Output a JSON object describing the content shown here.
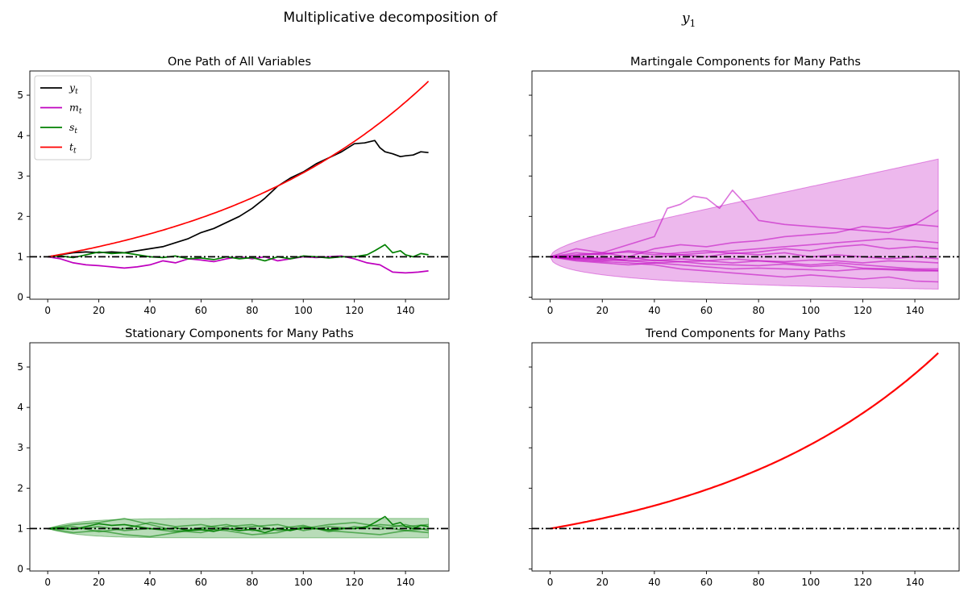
{
  "suptitle": {
    "text": "Multiplicative decomposition of",
    "var": "y",
    "sub": "1"
  },
  "colors": {
    "y": "#000000",
    "m": "#bf00bf",
    "s": "#008000",
    "t": "#ff0000",
    "ref": "#000000"
  },
  "chart_data": [
    {
      "type": "line",
      "title": "One Path of All Variables",
      "xlim": [
        -7,
        157
      ],
      "ylim": [
        -0.05,
        5.6
      ],
      "xticks": [
        0,
        20,
        40,
        60,
        80,
        100,
        120,
        140
      ],
      "yticks": [
        0,
        1,
        2,
        3,
        4,
        5
      ],
      "show_yticklabels": true,
      "legend": {
        "placement": "top-left",
        "entries": [
          {
            "var": "y",
            "sub": "t"
          },
          {
            "var": "m",
            "sub": "t"
          },
          {
            "var": "s",
            "sub": "t"
          },
          {
            "var": "t",
            "sub": "t"
          }
        ]
      },
      "hline": 1,
      "series": [
        {
          "name": "y_t",
          "color_key": "y",
          "x": [
            0,
            5,
            10,
            15,
            20,
            25,
            30,
            35,
            40,
            45,
            50,
            55,
            60,
            65,
            70,
            75,
            80,
            85,
            90,
            95,
            100,
            105,
            110,
            115,
            120,
            124,
            128,
            130,
            132,
            135,
            138,
            140,
            143,
            146,
            149
          ],
          "y": [
            1.0,
            1.05,
            1.1,
            1.12,
            1.1,
            1.12,
            1.1,
            1.15,
            1.2,
            1.25,
            1.35,
            1.45,
            1.6,
            1.7,
            1.85,
            2.0,
            2.2,
            2.45,
            2.75,
            2.95,
            3.1,
            3.3,
            3.45,
            3.6,
            3.8,
            3.82,
            3.88,
            3.7,
            3.6,
            3.55,
            3.48,
            3.5,
            3.52,
            3.6,
            3.58
          ]
        },
        {
          "name": "m_t",
          "color_key": "m",
          "x": [
            0,
            5,
            10,
            15,
            20,
            25,
            30,
            35,
            40,
            45,
            50,
            55,
            60,
            65,
            70,
            75,
            80,
            85,
            90,
            95,
            100,
            105,
            110,
            115,
            120,
            125,
            130,
            135,
            140,
            145,
            149
          ],
          "y": [
            1.0,
            0.95,
            0.85,
            0.8,
            0.78,
            0.75,
            0.72,
            0.75,
            0.8,
            0.9,
            0.85,
            0.95,
            0.92,
            0.88,
            0.95,
            1.0,
            0.95,
            1.0,
            0.9,
            0.95,
            1.0,
            0.98,
            1.0,
            1.02,
            0.95,
            0.85,
            0.8,
            0.62,
            0.6,
            0.62,
            0.65
          ]
        },
        {
          "name": "s_t",
          "color_key": "s",
          "x": [
            0,
            5,
            10,
            15,
            20,
            25,
            30,
            35,
            40,
            45,
            50,
            55,
            60,
            65,
            70,
            75,
            80,
            85,
            90,
            95,
            100,
            105,
            110,
            115,
            120,
            125,
            128,
            132,
            135,
            138,
            140,
            143,
            146,
            149
          ],
          "y": [
            1.0,
            1.02,
            0.98,
            1.05,
            1.12,
            1.08,
            1.1,
            1.05,
            1.0,
            0.98,
            1.02,
            0.95,
            0.97,
            0.93,
            1.0,
            0.95,
            0.98,
            0.9,
            1.0,
            0.95,
            1.02,
            1.0,
            0.97,
            1.0,
            1.0,
            1.05,
            1.15,
            1.3,
            1.1,
            1.15,
            1.05,
            1.0,
            1.08,
            1.05
          ]
        },
        {
          "name": "t_t",
          "color_key": "t",
          "growth": 0.01125,
          "x_end": 149
        }
      ]
    },
    {
      "type": "line",
      "title": "Martingale Components for Many Paths",
      "xlim": [
        -7,
        157
      ],
      "ylim": [
        -0.05,
        5.6
      ],
      "xticks": [
        0,
        20,
        40,
        60,
        80,
        100,
        120,
        140
      ],
      "yticks": [
        0,
        1,
        2,
        3,
        4,
        5
      ],
      "show_yticklabels": false,
      "hline": 1,
      "band": {
        "color_key": "m",
        "x_end": 149,
        "upper_end": 3.42,
        "lower_end": 0.2,
        "shape": "sqrt"
      },
      "series": [
        {
          "color_key": "m",
          "x": [
            0,
            10,
            20,
            30,
            40,
            45,
            50,
            55,
            60,
            65,
            70,
            75,
            80,
            90,
            100,
            110,
            120,
            130,
            140,
            149
          ],
          "y": [
            1,
            1.2,
            1.1,
            1.3,
            1.5,
            2.2,
            2.3,
            2.5,
            2.45,
            2.2,
            2.65,
            2.3,
            1.9,
            1.8,
            1.75,
            1.7,
            1.65,
            1.6,
            1.8,
            2.15
          ]
        },
        {
          "color_key": "m",
          "x": [
            0,
            10,
            20,
            30,
            40,
            50,
            60,
            70,
            80,
            90,
            100,
            110,
            120,
            130,
            140,
            149
          ],
          "y": [
            1,
            1.05,
            1.1,
            1.0,
            1.2,
            1.3,
            1.25,
            1.35,
            1.4,
            1.5,
            1.55,
            1.6,
            1.75,
            1.7,
            1.8,
            1.75
          ]
        },
        {
          "color_key": "m",
          "x": [
            0,
            10,
            20,
            30,
            40,
            50,
            60,
            70,
            80,
            90,
            100,
            110,
            120,
            130,
            140,
            149
          ],
          "y": [
            1,
            0.95,
            0.9,
            0.95,
            1.0,
            1.05,
            1.1,
            1.15,
            1.2,
            1.25,
            1.3,
            1.35,
            1.4,
            1.45,
            1.4,
            1.35
          ]
        },
        {
          "color_key": "m",
          "x": [
            0,
            10,
            20,
            30,
            40,
            50,
            60,
            70,
            80,
            90,
            100,
            110,
            120,
            130,
            140,
            149
          ],
          "y": [
            1,
            0.9,
            0.85,
            0.8,
            0.85,
            0.8,
            0.75,
            0.7,
            0.72,
            0.7,
            0.68,
            0.65,
            0.7,
            0.68,
            0.65,
            0.65
          ]
        },
        {
          "color_key": "m",
          "x": [
            0,
            10,
            20,
            30,
            40,
            50,
            60,
            70,
            80,
            90,
            100,
            110,
            120,
            130,
            140,
            149
          ],
          "y": [
            1,
            1.0,
            0.95,
            1.0,
            0.9,
            0.95,
            0.9,
            0.85,
            0.9,
            0.85,
            0.8,
            0.85,
            0.8,
            0.75,
            0.7,
            0.7
          ]
        },
        {
          "color_key": "m",
          "x": [
            0,
            10,
            20,
            30,
            40,
            50,
            60,
            70,
            80,
            90,
            100,
            110,
            120,
            130,
            140,
            149
          ],
          "y": [
            1,
            0.92,
            0.88,
            0.85,
            0.8,
            0.7,
            0.65,
            0.6,
            0.55,
            0.5,
            0.55,
            0.5,
            0.45,
            0.5,
            0.4,
            0.38
          ]
        },
        {
          "color_key": "m",
          "x": [
            0,
            10,
            20,
            30,
            40,
            50,
            60,
            70,
            80,
            90,
            100,
            110,
            120,
            130,
            140,
            149
          ],
          "y": [
            1,
            1.1,
            1.05,
            1.15,
            1.1,
            1.05,
            1.0,
            1.1,
            1.05,
            1.1,
            1.0,
            1.05,
            1.0,
            0.95,
            1.0,
            0.95
          ]
        },
        {
          "color_key": "m",
          "x": [
            0,
            10,
            20,
            30,
            40,
            50,
            60,
            70,
            80,
            90,
            100,
            110,
            120,
            130,
            140,
            149
          ],
          "y": [
            1,
            0.97,
            0.93,
            0.9,
            0.92,
            0.88,
            0.9,
            0.95,
            0.9,
            0.88,
            0.92,
            0.9,
            0.85,
            0.9,
            0.88,
            0.85
          ]
        },
        {
          "color_key": "m",
          "x": [
            0,
            10,
            20,
            30,
            40,
            50,
            60,
            70,
            80,
            90,
            100,
            110,
            120,
            130,
            140,
            149
          ],
          "y": [
            1,
            1.03,
            1.08,
            1.12,
            1.05,
            1.1,
            1.15,
            1.08,
            1.12,
            1.2,
            1.15,
            1.25,
            1.3,
            1.2,
            1.25,
            1.2
          ]
        },
        {
          "color_key": "m",
          "x": [
            0,
            10,
            20,
            30,
            40,
            50,
            60,
            70,
            80,
            90,
            100,
            110,
            120,
            130,
            140,
            149
          ],
          "y": [
            1,
            0.95,
            0.98,
            0.9,
            0.85,
            0.88,
            0.82,
            0.8,
            0.78,
            0.82,
            0.76,
            0.8,
            0.72,
            0.7,
            0.68,
            0.66
          ]
        }
      ]
    },
    {
      "type": "line",
      "title": "Stationary Components for Many Paths",
      "xlim": [
        -7,
        157
      ],
      "ylim": [
        -0.05,
        5.6
      ],
      "xticks": [
        0,
        20,
        40,
        60,
        80,
        100,
        120,
        140
      ],
      "yticks": [
        0,
        1,
        2,
        3,
        4,
        5
      ],
      "show_yticklabels": true,
      "hline": 1,
      "band": {
        "color_key": "s",
        "x_end": 149,
        "upper": 1.25,
        "lower": 0.77,
        "shape": "saturating"
      },
      "series": [
        {
          "color_key": "s",
          "x": [
            0,
            5,
            10,
            15,
            20,
            25,
            30,
            35,
            40,
            45,
            50,
            55,
            60,
            65,
            70,
            75,
            80,
            85,
            90,
            95,
            100,
            105,
            110,
            115,
            120,
            125,
            128,
            132,
            135,
            138,
            140,
            143,
            146,
            149
          ],
          "y": [
            1.0,
            1.02,
            0.98,
            1.05,
            1.12,
            1.08,
            1.1,
            1.05,
            1.0,
            0.98,
            1.02,
            0.95,
            0.97,
            0.93,
            1.0,
            0.95,
            0.98,
            0.9,
            1.0,
            0.95,
            1.02,
            1.0,
            0.97,
            1.0,
            1.0,
            1.05,
            1.15,
            1.3,
            1.1,
            1.15,
            1.05,
            1.0,
            1.08,
            1.05
          ]
        },
        {
          "color_key": "s",
          "x": [
            0,
            10,
            20,
            30,
            40,
            50,
            60,
            70,
            80,
            90,
            100,
            110,
            120,
            130,
            140,
            149
          ],
          "y": [
            1,
            1.1,
            1.15,
            1.25,
            1.1,
            0.95,
            0.9,
            1.05,
            1.1,
            0.95,
            1.0,
            1.1,
            1.15,
            1.05,
            0.95,
            1.0
          ]
        },
        {
          "color_key": "s",
          "x": [
            0,
            10,
            20,
            30,
            40,
            50,
            60,
            70,
            80,
            90,
            100,
            110,
            120,
            130,
            140,
            149
          ],
          "y": [
            1,
            0.9,
            0.95,
            0.85,
            0.8,
            0.9,
            1.0,
            0.95,
            0.85,
            0.9,
            1.05,
            0.95,
            0.9,
            0.85,
            0.95,
            0.9
          ]
        },
        {
          "color_key": "s",
          "x": [
            0,
            10,
            20,
            30,
            40,
            50,
            60,
            70,
            80,
            90,
            100,
            110,
            120,
            130,
            140,
            149
          ],
          "y": [
            1,
            1.05,
            0.92,
            1.0,
            1.15,
            1.05,
            1.1,
            0.98,
            1.05,
            1.1,
            0.95,
            1.05,
            1.0,
            1.1,
            1.05,
            1.1
          ]
        },
        {
          "color_key": "s",
          "x": [
            0,
            10,
            20,
            30,
            40,
            50,
            60,
            70,
            80,
            90,
            100,
            110,
            120,
            130,
            140,
            149
          ],
          "y": [
            1,
            0.98,
            1.05,
            0.95,
            1.0,
            0.92,
            1.02,
            1.1,
            0.95,
            1.0,
            1.08,
            0.92,
            1.05,
            0.98,
            1.1,
            0.95
          ]
        }
      ]
    },
    {
      "type": "line",
      "title": "Trend Components for Many Paths",
      "xlim": [
        -7,
        157
      ],
      "ylim": [
        -0.05,
        5.6
      ],
      "xticks": [
        0,
        20,
        40,
        60,
        80,
        100,
        120,
        140
      ],
      "yticks": [
        0,
        1,
        2,
        3,
        4,
        5
      ],
      "show_yticklabels": false,
      "hline": 1,
      "series": [
        {
          "name": "t_t",
          "color_key": "t",
          "growth": 0.01125,
          "x_end": 149
        }
      ]
    }
  ]
}
